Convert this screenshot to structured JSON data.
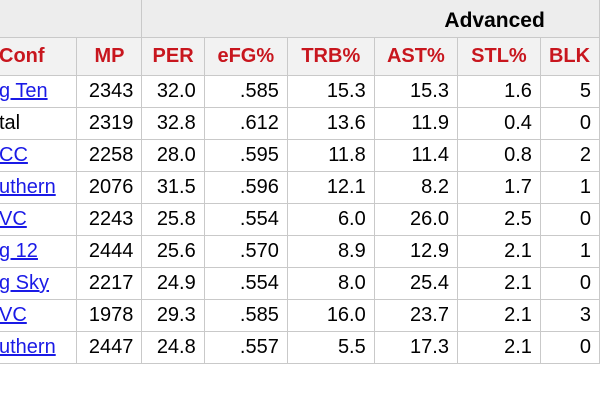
{
  "group_header": {
    "advanced_label": "Advanced"
  },
  "columns": [
    "Conf",
    "MP",
    "PER",
    "eFG%",
    "TRB%",
    "AST%",
    "STL%",
    "BLK"
  ],
  "rows": [
    {
      "conf": "g Ten",
      "conf_link": true,
      "mp": "2343",
      "per": "32.0",
      "efg": ".585",
      "trb": "15.3",
      "ast": "15.3",
      "stl": "1.6",
      "blk": "5"
    },
    {
      "conf": "tal",
      "conf_link": false,
      "mp": "2319",
      "per": "32.8",
      "efg": ".612",
      "trb": "13.6",
      "ast": "11.9",
      "stl": "0.4",
      "blk": "0"
    },
    {
      "conf": "CC",
      "conf_link": true,
      "mp": "2258",
      "per": "28.0",
      "efg": ".595",
      "trb": "11.8",
      "ast": "11.4",
      "stl": "0.8",
      "blk": "2"
    },
    {
      "conf": "uthern",
      "conf_link": true,
      "mp": "2076",
      "per": "31.5",
      "efg": ".596",
      "trb": "12.1",
      "ast": "8.2",
      "stl": "1.7",
      "blk": "1"
    },
    {
      "conf": "VC",
      "conf_link": true,
      "mp": "2243",
      "per": "25.8",
      "efg": ".554",
      "trb": "6.0",
      "ast": "26.0",
      "stl": "2.5",
      "blk": "0"
    },
    {
      "conf": "g 12",
      "conf_link": true,
      "mp": "2444",
      "per": "25.6",
      "efg": ".570",
      "trb": "8.9",
      "ast": "12.9",
      "stl": "2.1",
      "blk": "1"
    },
    {
      "conf": "g Sky",
      "conf_link": true,
      "mp": "2217",
      "per": "24.9",
      "efg": ".554",
      "trb": "8.0",
      "ast": "25.4",
      "stl": "2.1",
      "blk": "0"
    },
    {
      "conf": "VC",
      "conf_link": true,
      "mp": "1978",
      "per": "29.3",
      "efg": ".585",
      "trb": "16.0",
      "ast": "23.7",
      "stl": "2.1",
      "blk": "3"
    },
    {
      "conf": "uthern",
      "conf_link": true,
      "mp": "2447",
      "per": "24.8",
      "efg": ".557",
      "trb": "5.5",
      "ast": "17.3",
      "stl": "2.1",
      "blk": "0"
    }
  ],
  "colors": {
    "header_text": "#c8161e",
    "link": "#1a1ae6",
    "header_bg": "#f2f2f2",
    "group_bg": "#ededed",
    "border": "#c9c9c9"
  }
}
